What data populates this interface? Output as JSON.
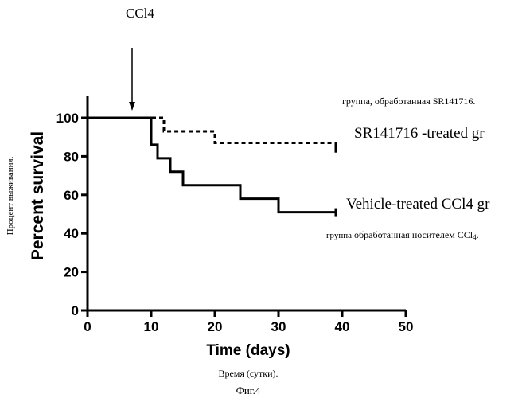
{
  "chart_data": {
    "type": "line",
    "ylabel": "Percent survival",
    "xlabel": "Time (days)",
    "xlim": [
      0,
      50
    ],
    "ylim": [
      0,
      100
    ],
    "xticks": [
      0,
      10,
      20,
      30,
      40,
      50
    ],
    "yticks": [
      0,
      20,
      40,
      60,
      80,
      100
    ],
    "step": true,
    "grid": false,
    "series": [
      {
        "name": "SR141716 -treated gr",
        "line_style": "dotted",
        "color": "#000000",
        "x": [
          0,
          12,
          20,
          39
        ],
        "y": [
          100,
          93,
          87,
          84
        ]
      },
      {
        "name": "Vehicle-treated CCl4 gr",
        "line_style": "solid",
        "color": "#000000",
        "x": [
          0,
          10,
          11,
          13,
          15,
          24,
          30,
          39
        ],
        "y": [
          100,
          86,
          79,
          72,
          65,
          58,
          51,
          51
        ]
      }
    ],
    "annotations": [
      {
        "text": "CCl4",
        "x": 7,
        "arrow": "down"
      }
    ]
  },
  "ru_ylabel": "Процент выживания.",
  "ru_xlabel": "Время (сутки).",
  "figure_caption": "Фиг.4",
  "ru_legend_sr": "группа, обработанная SR141716.",
  "ru_legend_vehicle_prefix": "группа",
  "ru_legend_vehicle_rest": "обработанная носителем CCl",
  "ru_legend_vehicle_sub": "4",
  "ru_legend_vehicle_end": "."
}
